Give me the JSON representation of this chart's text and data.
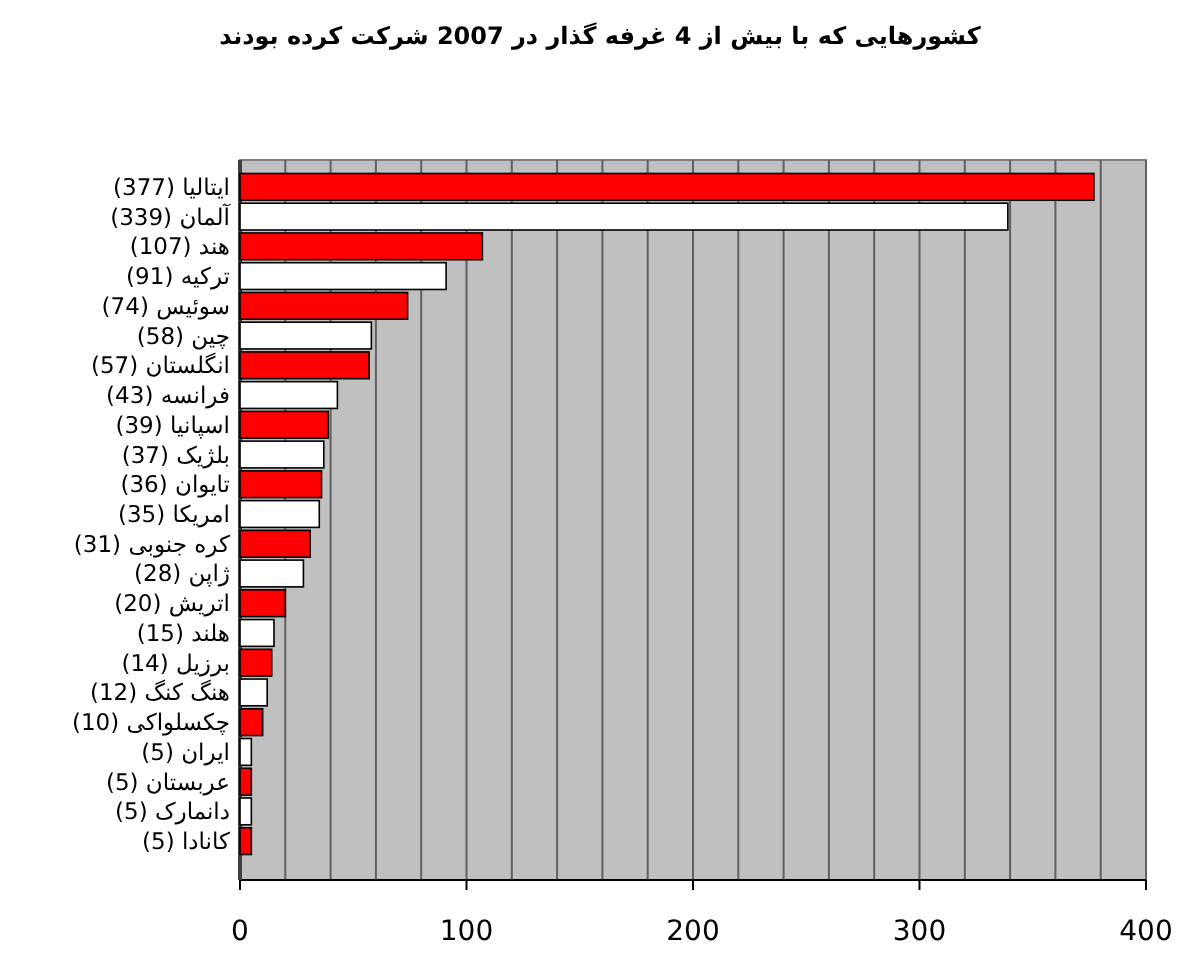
{
  "chart_data": {
    "type": "bar",
    "orientation": "horizontal",
    "title": "کشورهایی که با بیش از 4 غرفه گذار در 2007 شرکت کرده بودند",
    "categories": [
      "ایتالیا (377)",
      "آلمان (339)",
      "هند (107)",
      "ترکیه (91)",
      "سوئیس (74)",
      "چین (58)",
      "انگلستان (57)",
      "فرانسه (43)",
      "اسپانیا (39)",
      "بلژیک (37)",
      "تایوان (36)",
      "امریکا (35)",
      "کره جنوبی (31)",
      "ژاپن (28)",
      "اتریش (20)",
      "هلند (15)",
      "برزیل (14)",
      "هنگ کنگ (12)",
      "چکسلواکی (10)",
      "ایران (5)",
      "عربستان (5)",
      "دانمارک (5)",
      "کانادا (5)"
    ],
    "values": [
      377,
      339,
      107,
      91,
      74,
      58,
      57,
      43,
      39,
      37,
      36,
      35,
      31,
      28,
      20,
      15,
      14,
      12,
      10,
      5,
      5,
      5,
      5
    ],
    "colors": [
      "#ff0000",
      "#ffffff",
      "#ff0000",
      "#ffffff",
      "#ff0000",
      "#ffffff",
      "#ff0000",
      "#ffffff",
      "#ff0000",
      "#ffffff",
      "#ff0000",
      "#ffffff",
      "#ff0000",
      "#ffffff",
      "#ff0000",
      "#ffffff",
      "#ff0000",
      "#ffffff",
      "#ff0000",
      "#ffffff",
      "#ff0000",
      "#ffffff",
      "#ff0000"
    ],
    "xlim": [
      0,
      400
    ],
    "xticks": [
      0,
      {
        "value": 20,
        "label": null
      },
      {
        "value": 40,
        "label": null
      },
      {
        "value": 60,
        "label": null
      },
      {
        "value": 80,
        "label": null
      },
      100,
      {
        "value": 120,
        "label": null
      },
      {
        "value": 140,
        "label": null
      },
      {
        "value": 160,
        "label": null
      },
      {
        "value": 180,
        "label": null
      },
      200,
      {
        "value": 220,
        "label": null
      },
      {
        "value": 240,
        "label": null
      },
      {
        "value": 260,
        "label": null
      },
      {
        "value": 280,
        "label": null
      },
      300,
      {
        "value": 320,
        "label": null
      },
      {
        "value": 340,
        "label": null
      },
      {
        "value": 360,
        "label": null
      },
      {
        "value": 380,
        "label": null
      },
      400
    ],
    "grid": "x"
  }
}
